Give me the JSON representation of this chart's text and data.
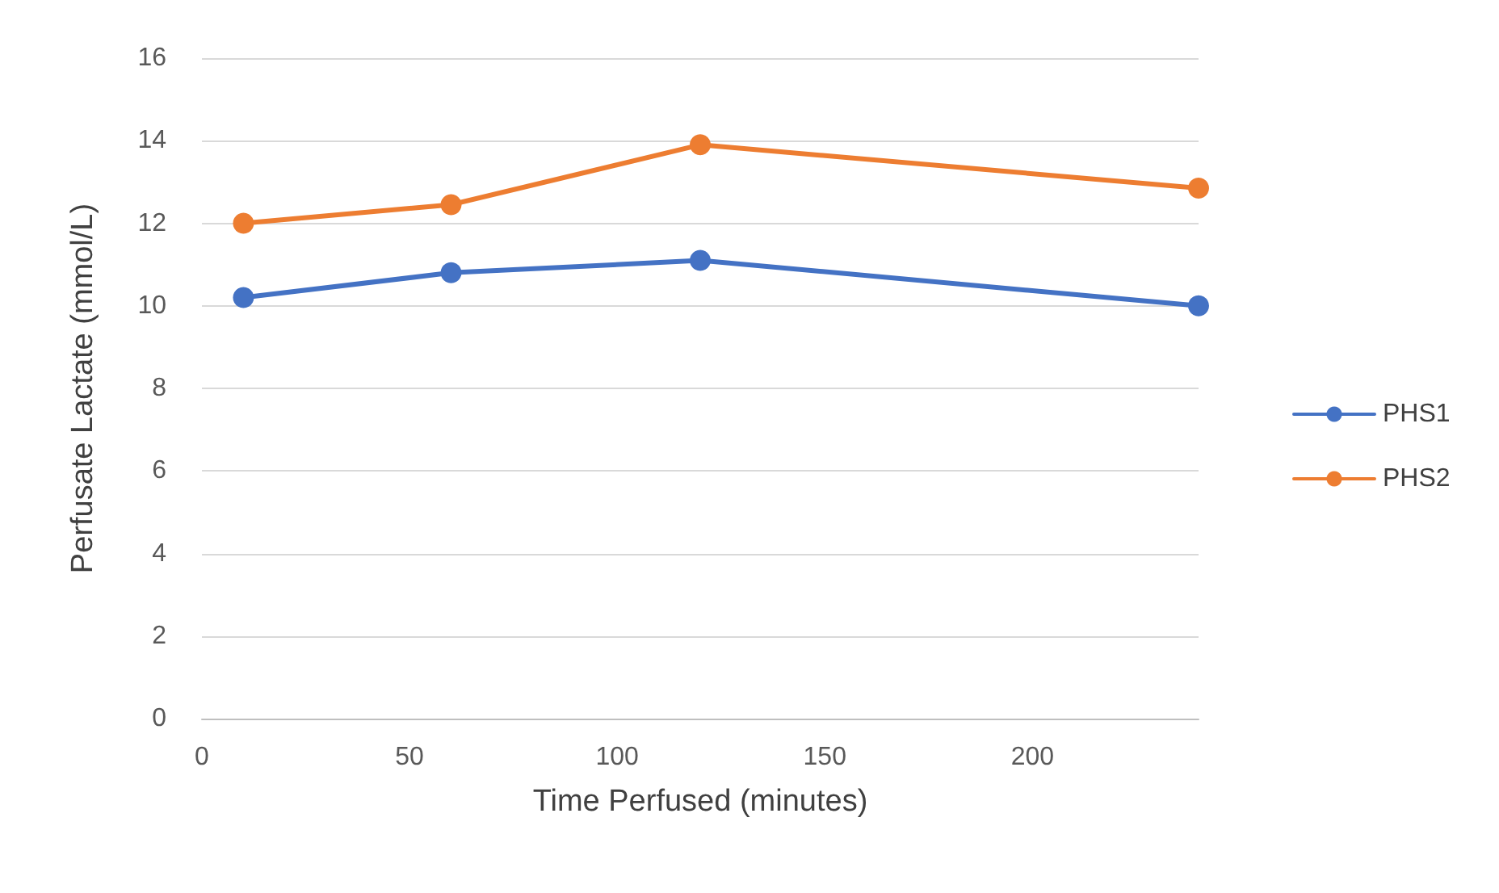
{
  "chart_data": {
    "type": "line",
    "xlabel": "Time Perfused (minutes)",
    "ylabel": "Perfusate Lactate (mmol/L)",
    "x": [
      10,
      60,
      120,
      240
    ],
    "series": [
      {
        "name": "PHS1",
        "color": "#4472c4",
        "values": [
          10.2,
          10.8,
          11.1,
          10.0
        ]
      },
      {
        "name": "PHS2",
        "color": "#ed7d31",
        "values": [
          12.0,
          12.45,
          13.9,
          12.85
        ]
      }
    ],
    "xlim": [
      0,
      240
    ],
    "xticks": [
      0,
      50,
      100,
      150,
      200
    ],
    "ylim": [
      0,
      16
    ],
    "yticks": [
      0,
      2,
      4,
      6,
      8,
      10,
      12,
      14,
      16
    ],
    "grid": "y",
    "legend": "right",
    "marker": "circle",
    "line_style": "solid"
  }
}
